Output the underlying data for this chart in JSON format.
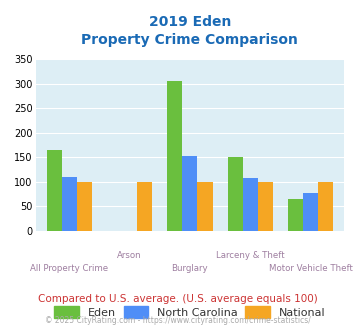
{
  "title_line1": "2019 Eden",
  "title_line2": "Property Crime Comparison",
  "categories": [
    "All Property Crime",
    "Arson",
    "Burglary",
    "Larceny & Theft",
    "Motor Vehicle Theft"
  ],
  "row1_labels": [
    "",
    "Arson",
    "",
    "Larceny & Theft",
    ""
  ],
  "row2_labels": [
    "All Property Crime",
    "",
    "Burglary",
    "",
    "Motor Vehicle Theft"
  ],
  "eden_values": [
    165,
    0,
    305,
    150,
    65
  ],
  "nc_values": [
    110,
    0,
    153,
    108,
    78
  ],
  "national_values": [
    100,
    100,
    100,
    100,
    100
  ],
  "eden_color": "#6abf3e",
  "nc_color": "#4f8ef7",
  "national_color": "#f5a623",
  "bg_color": "#ddeef5",
  "ylim": [
    0,
    350
  ],
  "yticks": [
    0,
    50,
    100,
    150,
    200,
    250,
    300,
    350
  ],
  "title_color": "#1a6ab5",
  "xlabel_color": "#9e7ea0",
  "note_text": "Compared to U.S. average. (U.S. average equals 100)",
  "note_color": "#cc3333",
  "footer_text": "© 2025 CityRating.com - https://www.cityrating.com/crime-statistics/",
  "footer_color": "#aaaaaa",
  "legend_labels": [
    "Eden",
    "North Carolina",
    "National"
  ]
}
